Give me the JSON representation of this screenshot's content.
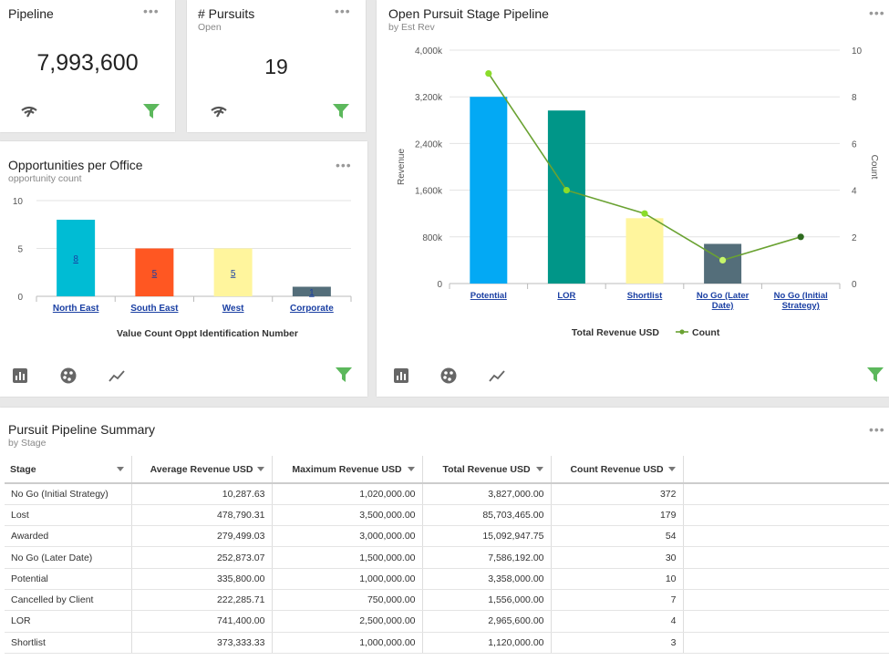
{
  "pipeline_card": {
    "title": "Pipeline",
    "value": "7,993,600"
  },
  "pursuits_card": {
    "title": "# Pursuits",
    "subtitle": "Open",
    "value": "19"
  },
  "office_card": {
    "title": "Opportunities per Office",
    "subtitle": "opportunity count",
    "chart_data": {
      "type": "bar",
      "categories": [
        "North East",
        "South East",
        "West",
        "Corporate"
      ],
      "values": [
        8,
        5,
        5,
        1
      ],
      "colors": [
        "#00bcd4",
        "#ff5722",
        "#fff59d",
        "#546e7a"
      ],
      "data_labels": [
        "8",
        "5",
        "5",
        "1"
      ],
      "yticks": [
        "0",
        "5",
        "10"
      ],
      "ylim": [
        0,
        10
      ],
      "xlabel": "Value Count Oppt Identification Number",
      "grid": true
    }
  },
  "stage_card": {
    "title": "Open Pursuit Stage Pipeline",
    "subtitle": "by Est Rev",
    "chart_data": {
      "type": "bar",
      "categories": [
        "Potential",
        "LOR",
        "Shortlist",
        "No Go (Later Date)",
        "No Go (Initial Strategy)"
      ],
      "category_lines": [
        [
          "Potential"
        ],
        [
          "LOR"
        ],
        [
          "Shortlist"
        ],
        [
          "No Go (Later",
          "Date)"
        ],
        [
          "No Go (Initial",
          "Strategy)"
        ]
      ],
      "series": [
        {
          "name": "Total Revenue USD",
          "type": "bar",
          "axis": "left",
          "values": [
            3200000,
            2965600,
            1120000,
            680000,
            0
          ],
          "colors": [
            "#03a9f4",
            "#009688",
            "#fff59d",
            "#546e7a",
            "#90a4ae"
          ]
        },
        {
          "name": "Count",
          "type": "line",
          "axis": "right",
          "values": [
            9,
            4,
            3,
            1,
            2
          ],
          "color": "#6aa232",
          "marker_colors": [
            "#8bdc2a",
            "#8bdc2a",
            "#8bdc2a",
            "#c6f56a",
            "#2e6b1f"
          ]
        }
      ],
      "ylabel": "Revenue",
      "y2label": "Count",
      "yticks_left": [
        "0",
        "800k",
        "1,600k",
        "2,400k",
        "3,200k",
        "4,000k"
      ],
      "yticks_right": [
        "0",
        "2",
        "4",
        "6",
        "8",
        "10"
      ],
      "ylim": [
        0,
        4000000
      ],
      "y2lim": [
        0,
        10
      ],
      "legend_position": "bottom",
      "grid": true
    }
  },
  "summary": {
    "title": "Pursuit Pipeline Summary",
    "subtitle": "by Stage",
    "columns": [
      "Stage",
      "Average Revenue USD",
      "Maximum Revenue USD",
      "Total Revenue USD",
      "Count Revenue USD"
    ],
    "rows": [
      [
        "No Go (Initial Strategy)",
        "10,287.63",
        "1,020,000.00",
        "3,827,000.00",
        "372"
      ],
      [
        "Lost",
        "478,790.31",
        "3,500,000.00",
        "85,703,465.00",
        "179"
      ],
      [
        "Awarded",
        "279,499.03",
        "3,000,000.00",
        "15,092,947.75",
        "54"
      ],
      [
        "No Go (Later Date)",
        "252,873.07",
        "1,500,000.00",
        "7,586,192.00",
        "30"
      ],
      [
        "Potential",
        "335,800.00",
        "1,000,000.00",
        "3,358,000.00",
        "10"
      ],
      [
        "Cancelled by Client",
        "222,285.71",
        "750,000.00",
        "1,556,000.00",
        "7"
      ],
      [
        "LOR",
        "741,400.00",
        "2,500,000.00",
        "2,965,600.00",
        "4"
      ],
      [
        "Shortlist",
        "373,333.33",
        "1,000,000.00",
        "1,120,000.00",
        "3"
      ]
    ]
  },
  "colors": {
    "filter": "#5cb85c",
    "link": "#1a3fa3"
  },
  "icons": [
    "more-options-icon",
    "signal-icon",
    "filter-icon",
    "bar-chart-icon",
    "palette-icon",
    "trend-line-icon",
    "sort-arrow-icon"
  ]
}
